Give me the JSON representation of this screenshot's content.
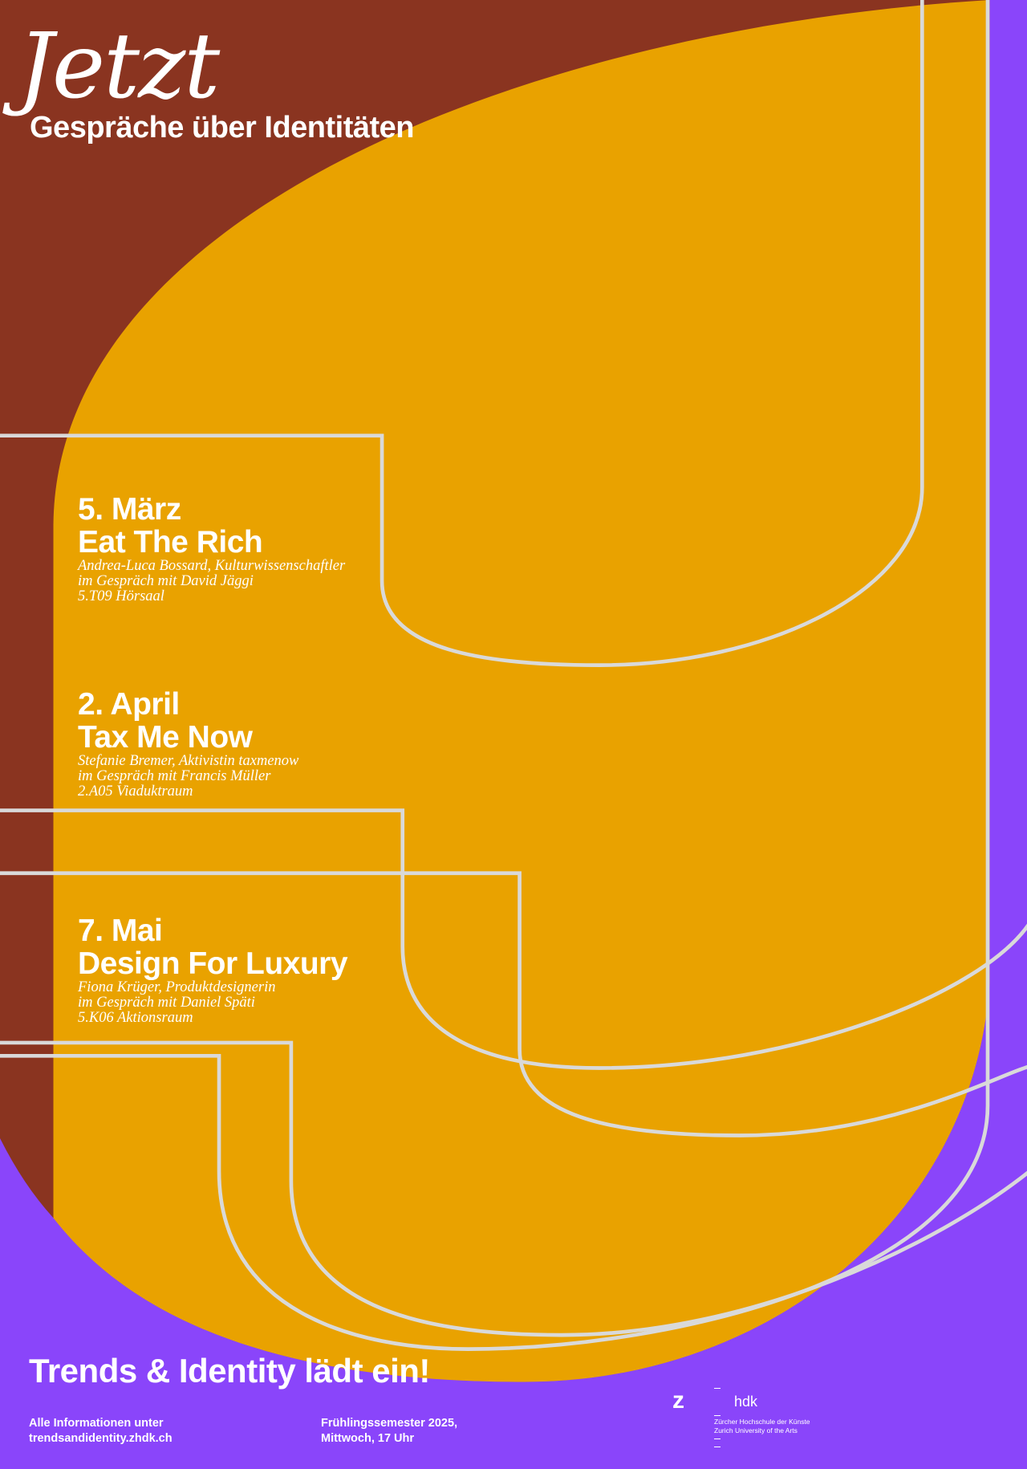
{
  "colors": {
    "brown": "#8a3420",
    "orange": "#e9a200",
    "purple": "#8a45fa",
    "line": "#d9d9d9"
  },
  "header": {
    "title": "Jetzt",
    "subtitle": "Gespräche über Identitäten"
  },
  "events": [
    {
      "date": "5. März",
      "title": "Eat The Rich",
      "lines": [
        "Andrea-Luca Bossard, Kulturwissenschaftler",
        "im Gespräch mit David Jäggi",
        "5.T09 Hörsaal"
      ]
    },
    {
      "date": "2. April",
      "title": "Tax Me Now",
      "lines": [
        "Stefanie Bremer, Aktivistin taxmenow",
        "im Gespräch mit Francis Müller",
        "2.A05 Viaduktraum"
      ]
    },
    {
      "date": "7. Mai",
      "title": "Design For Luxury",
      "lines": [
        "Fiona Krüger, Produktdesignerin",
        "im Gespräch mit Daniel Späti",
        "5.K06 Aktionsraum"
      ]
    }
  ],
  "footer": {
    "invite": "Trends & Identity lädt ein!",
    "info": [
      "Alle Informationen unter",
      "trendsandidentity.zhdk.ch"
    ],
    "schedule": [
      "Frühlingssemester 2025,",
      "Mittwoch, 17 Uhr"
    ],
    "logo": {
      "mark": "z",
      "name": "hdk",
      "lines": [
        "Zürcher Hochschule der Künste",
        "Zurich University of the Arts"
      ]
    }
  }
}
